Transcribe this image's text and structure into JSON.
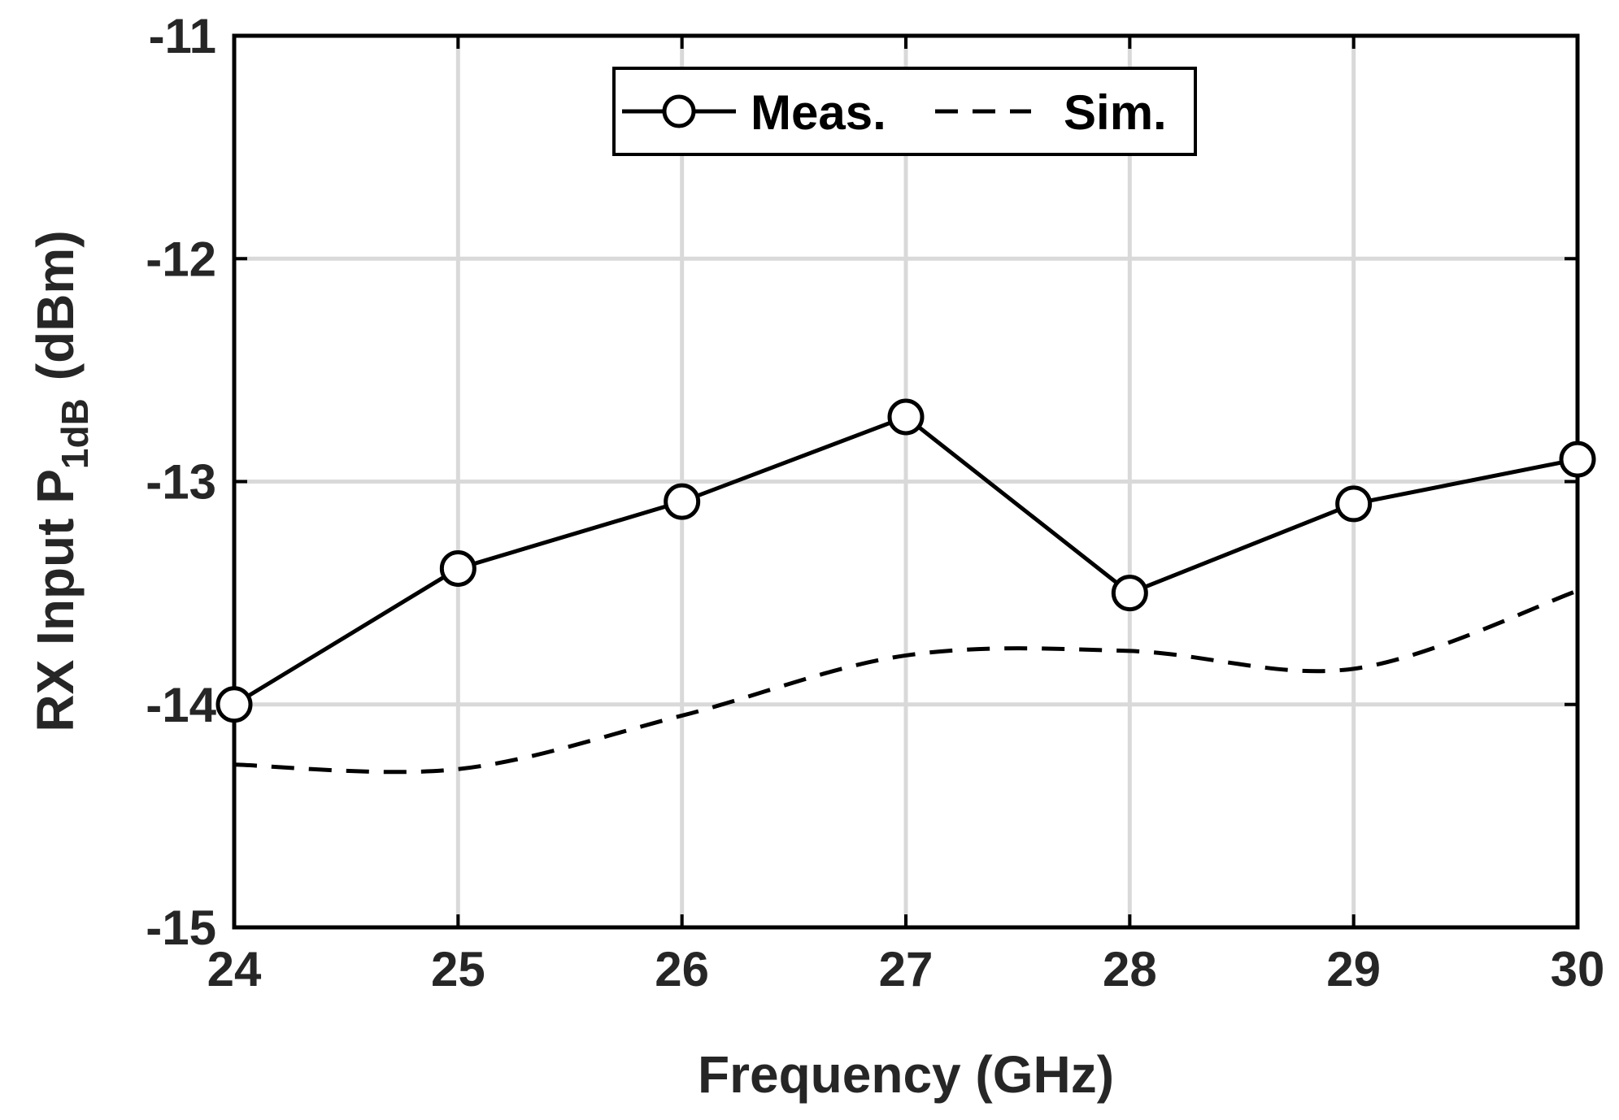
{
  "chart_data": {
    "type": "line",
    "x": [
      24,
      25,
      26,
      27,
      28,
      29,
      30
    ],
    "series": [
      {
        "name": "Meas.",
        "style": "solid-circle-markers",
        "values": [
          -14.0,
          -13.39,
          -13.09,
          -12.71,
          -13.5,
          -13.1,
          -12.9
        ]
      },
      {
        "name": "Sim.",
        "style": "dashed",
        "values": [
          -14.27,
          -14.29,
          -14.05,
          -13.78,
          -13.76,
          -13.84,
          -13.49
        ]
      }
    ],
    "xlabel": "Frequency (GHz)",
    "ylabel": {
      "main": "RX Input P",
      "subscript": "1dB",
      "unit": "(dBm)"
    },
    "xlim": [
      24,
      30
    ],
    "ylim": [
      -15,
      -11
    ],
    "x_ticks": [
      24,
      25,
      26,
      27,
      28,
      29,
      30
    ],
    "y_ticks": [
      -15,
      -14,
      -13,
      -12,
      -11
    ],
    "x_tick_labels": [
      "24",
      "25",
      "26",
      "27",
      "28",
      "29",
      "30"
    ],
    "y_tick_labels": [
      "-15",
      "-14",
      "-13",
      "-12",
      "-11"
    ],
    "grid": true,
    "legend_position": "top-center"
  },
  "colors": {
    "line": "#000000",
    "grid": "#d9d9d9",
    "axis_text": "#262626",
    "background": "#ffffff"
  }
}
